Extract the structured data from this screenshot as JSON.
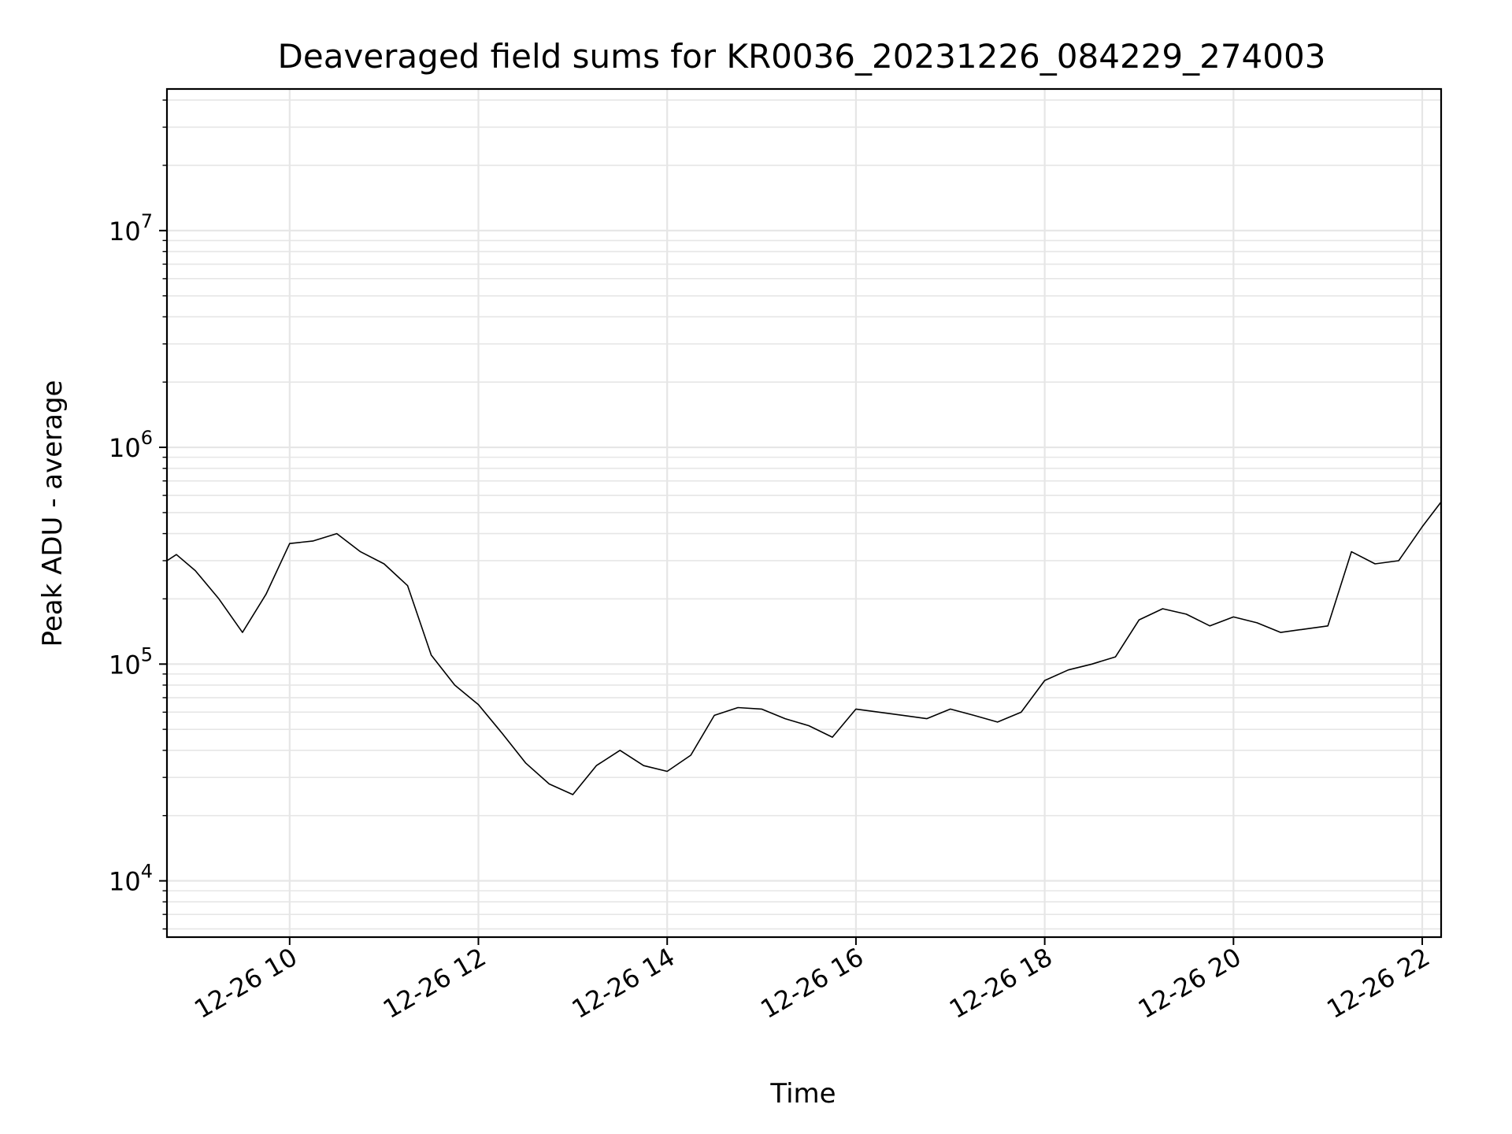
{
  "chart_data": {
    "type": "line",
    "title": "Deaveraged field sums for KR0036_20231226_084229_274003",
    "xlabel": "Time",
    "ylabel": "Peak ADU - average",
    "x_scale": "time",
    "y_scale": "log",
    "xlim": [
      "2023-12-26 08:42",
      "2023-12-26 22:12"
    ],
    "ylim": [
      5500,
      45000000
    ],
    "x_ticks": [
      "12-26 10",
      "12-26 12",
      "12-26 14",
      "12-26 16",
      "12-26 18",
      "12-26 20",
      "12-26 22"
    ],
    "x_tick_rotation_deg": 30,
    "y_ticks": [
      {
        "base": "10",
        "exp": "4"
      },
      {
        "base": "10",
        "exp": "5"
      },
      {
        "base": "10",
        "exp": "6"
      },
      {
        "base": "10",
        "exp": "7"
      }
    ],
    "grid": true,
    "line_color": "#000000",
    "grid_color": "#e6e6e6",
    "series": [
      {
        "x": [
          "2023-12-26 08:42",
          "2023-12-26 08:48",
          "2023-12-26 09:00",
          "2023-12-26 09:15",
          "2023-12-26 09:30",
          "2023-12-26 09:45",
          "2023-12-26 10:00",
          "2023-12-26 10:15",
          "2023-12-26 10:30",
          "2023-12-26 10:45",
          "2023-12-26 11:00",
          "2023-12-26 11:15",
          "2023-12-26 11:30",
          "2023-12-26 11:45",
          "2023-12-26 12:00",
          "2023-12-26 12:15",
          "2023-12-26 12:30",
          "2023-12-26 12:45",
          "2023-12-26 13:00",
          "2023-12-26 13:15",
          "2023-12-26 13:30",
          "2023-12-26 13:45",
          "2023-12-26 14:00",
          "2023-12-26 14:15",
          "2023-12-26 14:30",
          "2023-12-26 14:45",
          "2023-12-26 15:00",
          "2023-12-26 15:15",
          "2023-12-26 15:30",
          "2023-12-26 15:45",
          "2023-12-26 16:00",
          "2023-12-26 16:15",
          "2023-12-26 16:30",
          "2023-12-26 16:45",
          "2023-12-26 17:00",
          "2023-12-26 17:15",
          "2023-12-26 17:30",
          "2023-12-26 17:45",
          "2023-12-26 18:00",
          "2023-12-26 18:15",
          "2023-12-26 18:30",
          "2023-12-26 18:45",
          "2023-12-26 19:00",
          "2023-12-26 19:15",
          "2023-12-26 19:30",
          "2023-12-26 19:45",
          "2023-12-26 20:00",
          "2023-12-26 20:15",
          "2023-12-26 20:30",
          "2023-12-26 20:45",
          "2023-12-26 21:00",
          "2023-12-26 21:15",
          "2023-12-26 21:30",
          "2023-12-26 21:45",
          "2023-12-26 22:00",
          "2023-12-26 22:12"
        ],
        "y": [
          300000,
          320000,
          270000,
          200000,
          140000,
          210000,
          360000,
          370000,
          400000,
          330000,
          290000,
          230000,
          110000,
          80000,
          65000,
          48000,
          35000,
          28000,
          25000,
          34000,
          40000,
          34000,
          32000,
          38000,
          58000,
          63000,
          62000,
          56000,
          52000,
          46000,
          62000,
          60000,
          58000,
          56000,
          62000,
          58000,
          54000,
          60000,
          84000,
          94000,
          100000,
          108000,
          160000,
          180000,
          170000,
          150000,
          165000,
          155000,
          140000,
          145000,
          150000,
          330000,
          290000,
          300000,
          430000,
          560000
        ]
      }
    ]
  }
}
